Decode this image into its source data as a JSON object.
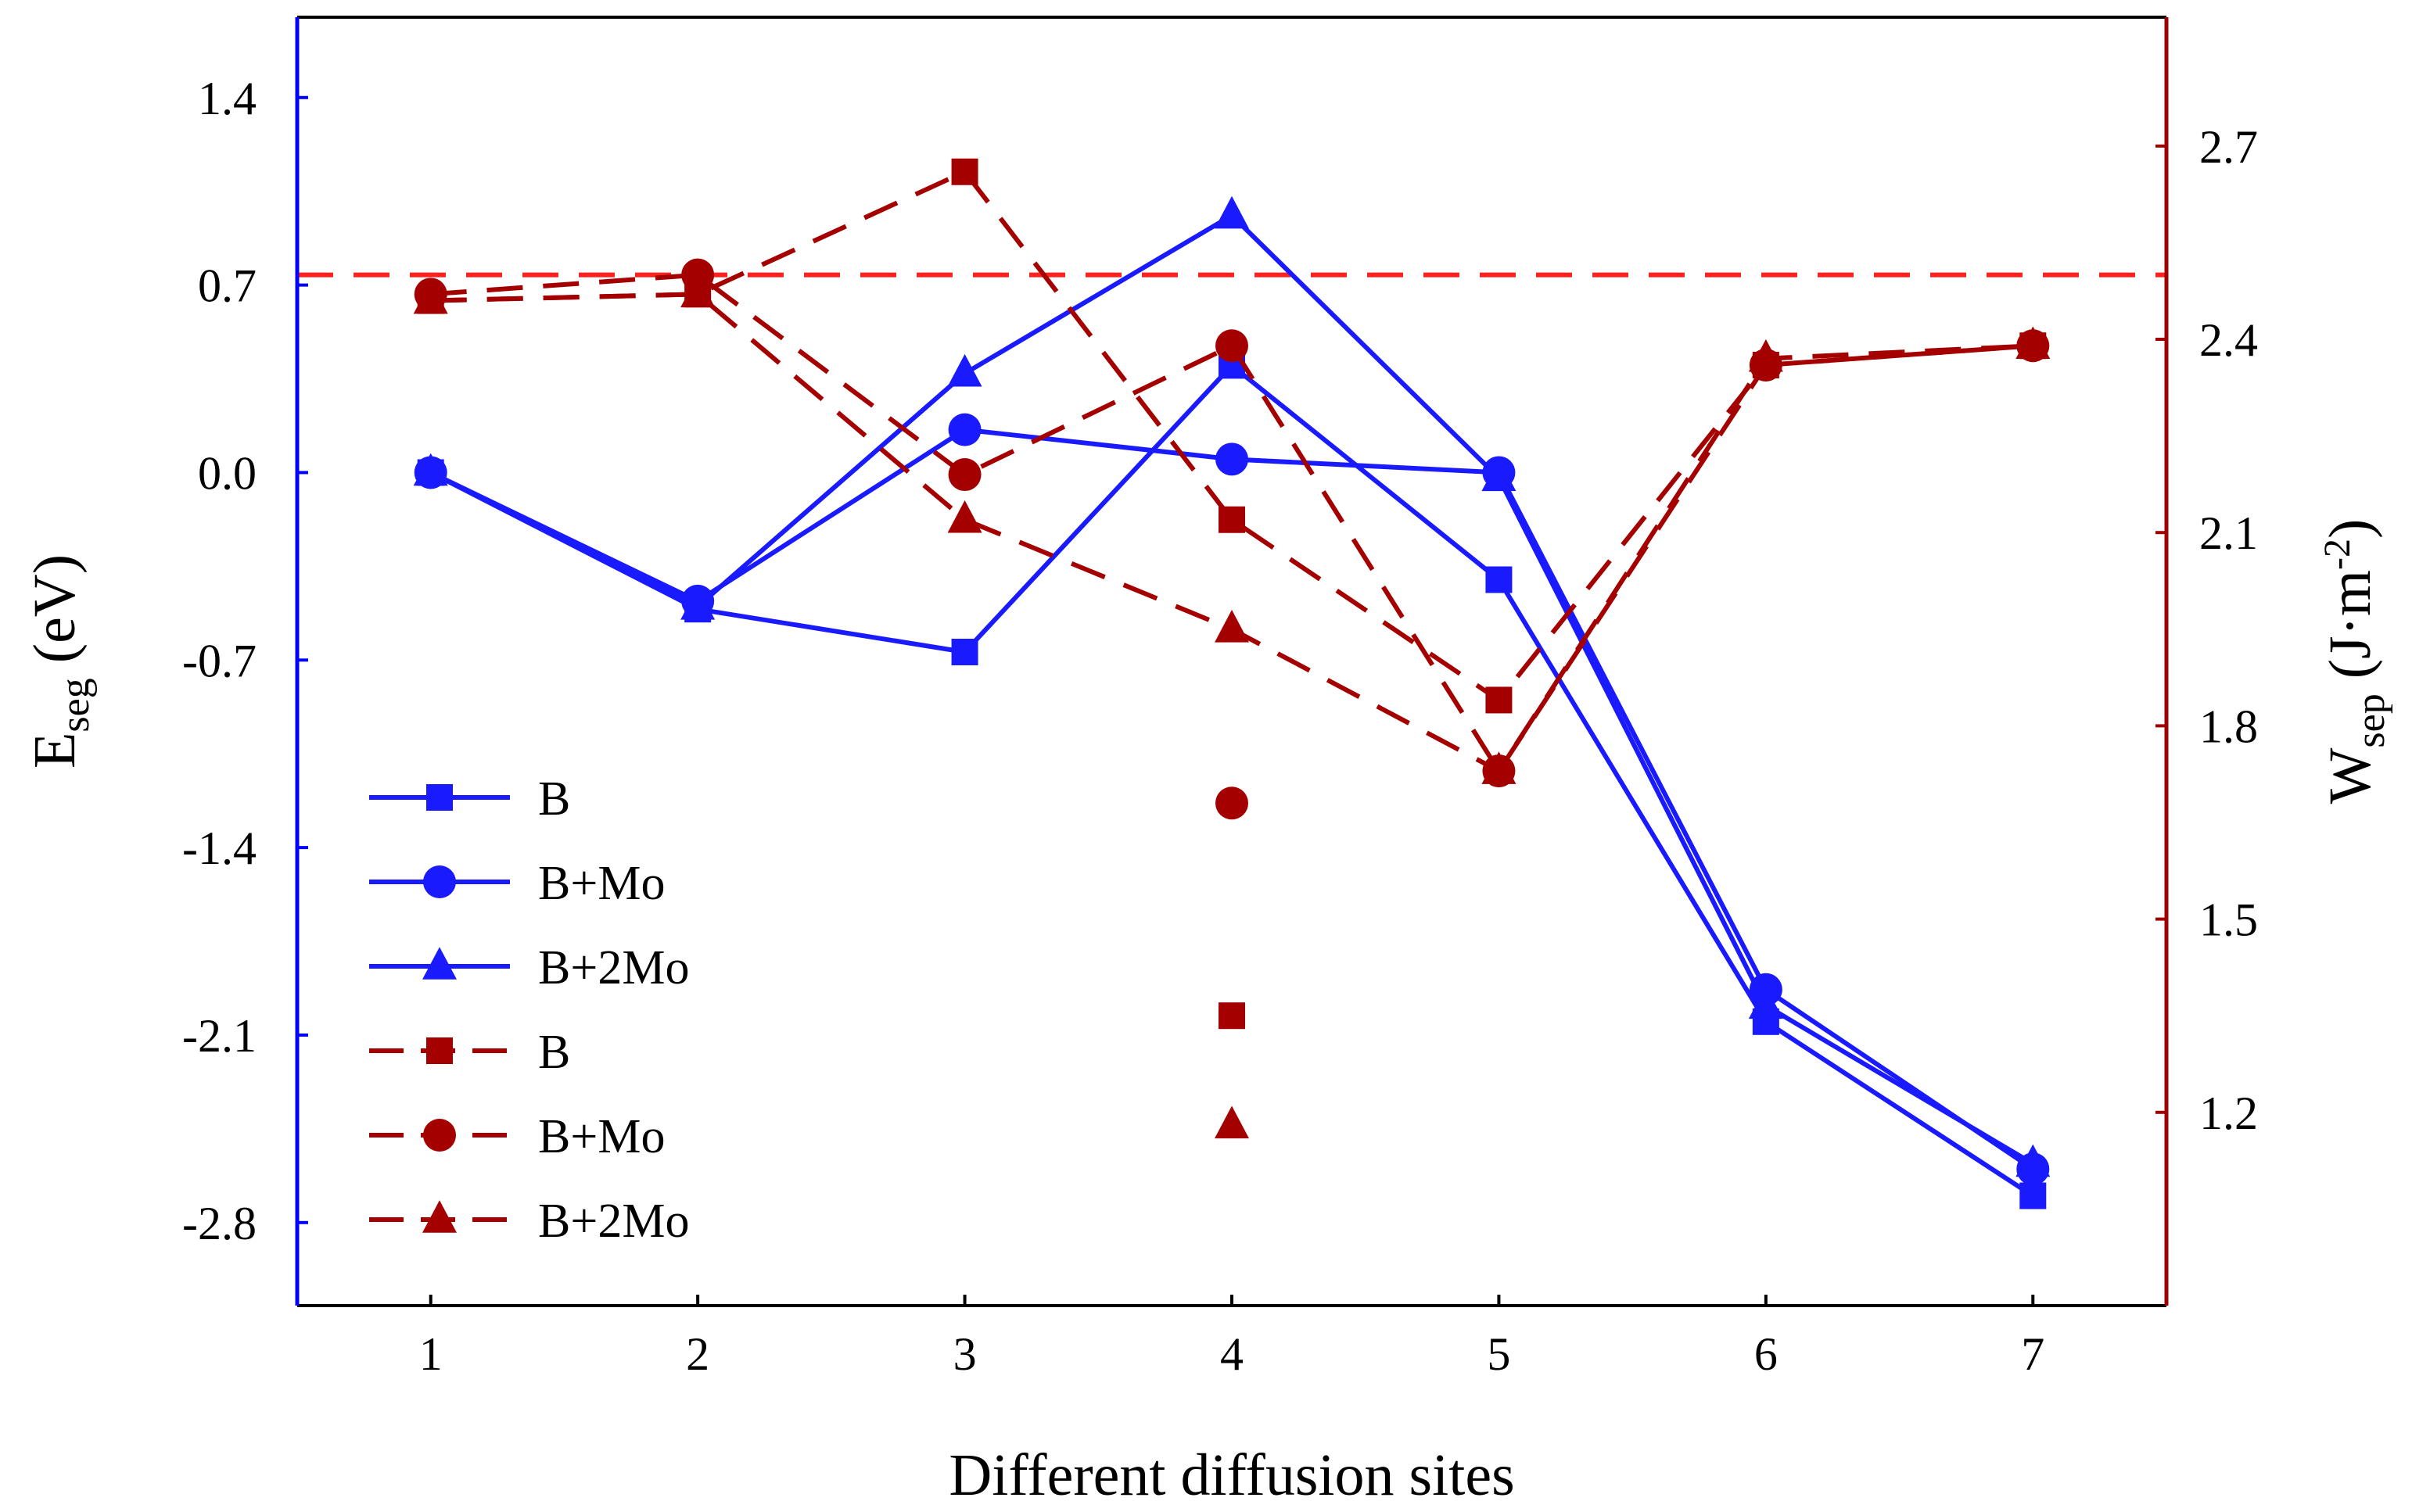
{
  "chart_data": {
    "type": "line",
    "title": "",
    "xlabel": "Different diffusion sites",
    "ylabel_left": {
      "main": "E",
      "sub": "seg",
      "unit": " (eV)"
    },
    "ylabel_right": {
      "main": "W",
      "sub": "sep",
      "unit_pre": " (J·m",
      "unit_sup": "-2",
      "unit_post": ")"
    },
    "x": [
      1,
      2,
      3,
      4,
      5,
      6,
      7
    ],
    "x_ticks": [
      "1",
      "2",
      "3",
      "4",
      "5",
      "6",
      "7"
    ],
    "xlim": [
      0.5,
      7.5
    ],
    "ylim_left": [
      -3.11,
      1.7
    ],
    "ylim_right": [
      0.9,
      2.9
    ],
    "left_ticks": [
      1.4,
      0.7,
      0.0,
      -0.7,
      -1.4,
      -2.1,
      -2.8
    ],
    "left_tick_labels": [
      "1.4",
      "0.7",
      "0.0",
      "-0.7",
      "-1.4",
      "-2.1",
      "-2.8"
    ],
    "right_ticks": [
      2.7,
      2.4,
      2.1,
      1.8,
      1.5,
      1.2
    ],
    "right_tick_labels": [
      "2.7",
      "2.4",
      "2.1",
      "1.8",
      "1.5",
      "1.2"
    ],
    "reference_line": {
      "axis": "right",
      "value": 2.5,
      "style": "dashed"
    },
    "colors": {
      "left_axis": "#0000ff",
      "right_axis": "#a00000",
      "esg_series": "#1a1aff",
      "wsep_series": "#a50000",
      "reference": "#ff2020"
    },
    "series": [
      {
        "name": "B",
        "axis": "left",
        "marker": "square",
        "line": "solid",
        "values": [
          0.0,
          -0.51,
          -0.67,
          0.4,
          -0.4,
          -2.05,
          -2.7
        ]
      },
      {
        "name": "B+Mo",
        "axis": "left",
        "marker": "circle",
        "line": "solid",
        "values": [
          0.0,
          -0.48,
          0.16,
          0.05,
          0.0,
          -1.93,
          -2.6
        ]
      },
      {
        "name": "B+2Mo",
        "axis": "left",
        "marker": "triangle",
        "line": "solid",
        "values": [
          0.0,
          -0.5,
          0.37,
          0.96,
          -0.02,
          -1.99,
          -2.58
        ]
      },
      {
        "name": "B",
        "axis": "right",
        "marker": "square",
        "line": "dashed",
        "values": [
          2.46,
          2.47,
          2.66,
          2.12,
          1.84,
          2.36,
          2.39
        ]
      },
      {
        "name": "B+Mo",
        "axis": "right",
        "marker": "circle",
        "line": "dashed",
        "values": [
          2.47,
          2.5,
          2.19,
          2.39,
          1.73,
          2.36,
          2.39
        ]
      },
      {
        "name": "B+2Mo",
        "axis": "right",
        "marker": "triangle",
        "line": "dashed",
        "values": [
          2.46,
          2.47,
          2.12,
          1.95,
          1.73,
          2.37,
          2.39
        ]
      }
    ],
    "isolated_points": [
      {
        "series": "B+Mo",
        "axis": "right",
        "marker": "circle",
        "x": 4,
        "value": 1.68
      },
      {
        "series": "B",
        "axis": "right",
        "marker": "square",
        "x": 4,
        "value": 1.35
      },
      {
        "series": "B+2Mo",
        "axis": "right",
        "marker": "triangle",
        "x": 4,
        "value": 1.18
      }
    ],
    "legend": {
      "placement": "lower-left",
      "entries": [
        "B",
        "B+Mo",
        "B+2Mo",
        "B",
        "B+Mo",
        "B+2Mo"
      ]
    }
  }
}
